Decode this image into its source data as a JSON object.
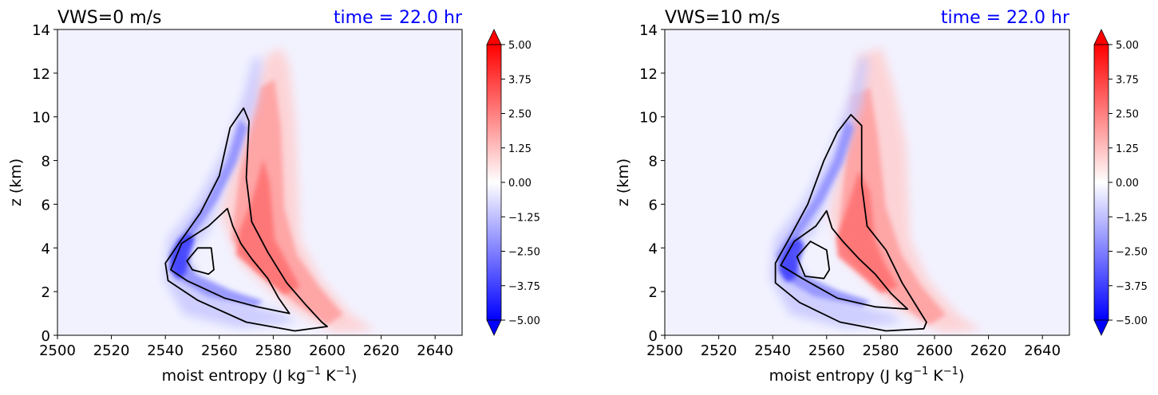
{
  "chart_data": [
    {
      "type": "heatmap",
      "title_left": "VWS=0 m/s",
      "title_right": "time = 22.0 hr",
      "title_right_color": "#0000ff",
      "xlabel": "moist entropy (J kg$^{-1}$ K$^{-1}$)",
      "xlabel_parts": {
        "base": "moist entropy (J kg",
        "exp1": "−1",
        "mid": " K",
        "exp2": "−1",
        "end": ")"
      },
      "ylabel": "z (km)",
      "xlim": [
        2500,
        2650
      ],
      "ylim": [
        0,
        14
      ],
      "xticks": [
        2500,
        2520,
        2540,
        2560,
        2580,
        2600,
        2620,
        2640
      ],
      "yticks": [
        0,
        2,
        4,
        6,
        8,
        10,
        12,
        14
      ],
      "colormap": "bwr",
      "colorbar_range": [
        -5.0,
        5.0
      ],
      "colorbar_extend": "both",
      "colorbar_ticks": [
        "5.00",
        "3.75",
        "2.50",
        "1.25",
        "0.00",
        "−1.25",
        "−2.50",
        "−3.75",
        "−5.00"
      ],
      "features": {
        "negative_core": {
          "x": 2545,
          "z": 3.5
        },
        "positive_core": {
          "x": 2570,
          "z": 3.5
        }
      },
      "contours": [
        [
          [
            2548,
            3.4
          ],
          [
            2552,
            4.0
          ],
          [
            2557,
            4.0
          ],
          [
            2558,
            3.0
          ],
          [
            2556,
            2.8
          ],
          [
            2550,
            3.0
          ],
          [
            2548,
            3.4
          ]
        ],
        [
          [
            2542,
            3.0
          ],
          [
            2546,
            4.2
          ],
          [
            2556,
            5.0
          ],
          [
            2563,
            5.8
          ],
          [
            2565,
            5.0
          ],
          [
            2568,
            4.2
          ],
          [
            2572,
            3.5
          ],
          [
            2578,
            2.6
          ],
          [
            2582,
            1.7
          ],
          [
            2586,
            1.0
          ],
          [
            2574,
            1.3
          ],
          [
            2562,
            1.7
          ],
          [
            2548,
            2.5
          ],
          [
            2542,
            3.0
          ]
        ],
        [
          [
            2540,
            3.3
          ],
          [
            2545,
            4.2
          ],
          [
            2553,
            5.6
          ],
          [
            2560,
            7.3
          ],
          [
            2564,
            9.5
          ],
          [
            2569,
            10.4
          ],
          [
            2571,
            9.8
          ],
          [
            2570,
            7.2
          ],
          [
            2572,
            5.2
          ],
          [
            2578,
            3.8
          ],
          [
            2585,
            2.4
          ],
          [
            2592,
            1.4
          ],
          [
            2598,
            0.6
          ],
          [
            2600,
            0.4
          ],
          [
            2588,
            0.2
          ],
          [
            2570,
            0.6
          ],
          [
            2552,
            1.6
          ],
          [
            2541,
            2.5
          ],
          [
            2540,
            3.3
          ]
        ]
      ]
    },
    {
      "type": "heatmap",
      "title_left": "VWS=10 m/s",
      "title_right": "time = 22.0 hr",
      "title_right_color": "#0000ff",
      "xlabel": "moist entropy (J kg$^{-1}$ K$^{-1}$)",
      "xlabel_parts": {
        "base": "moist entropy (J kg",
        "exp1": "−1",
        "mid": " K",
        "exp2": "−1",
        "end": ")"
      },
      "ylabel": "z (km)",
      "xlim": [
        2500,
        2650
      ],
      "ylim": [
        0,
        14
      ],
      "xticks": [
        2500,
        2520,
        2540,
        2560,
        2580,
        2600,
        2620,
        2640
      ],
      "yticks": [
        0,
        2,
        4,
        6,
        8,
        10,
        12,
        14
      ],
      "colormap": "bwr",
      "colorbar_range": [
        -5.0,
        5.0
      ],
      "colorbar_extend": "both",
      "colorbar_ticks": [
        "5.00",
        "3.75",
        "2.50",
        "1.25",
        "0.00",
        "−1.25",
        "−2.50",
        "−3.75",
        "−5.00"
      ],
      "features": {
        "negative_core": {
          "x": 2546,
          "z": 3.3
        },
        "positive_core": {
          "x": 2568,
          "z": 3.8
        }
      },
      "contours": [
        [
          [
            2549,
            3.6
          ],
          [
            2554,
            4.3
          ],
          [
            2560,
            3.9
          ],
          [
            2561,
            3.0
          ],
          [
            2559,
            2.6
          ],
          [
            2552,
            2.7
          ],
          [
            2549,
            3.6
          ]
        ],
        [
          [
            2543,
            3.2
          ],
          [
            2548,
            4.3
          ],
          [
            2556,
            5.0
          ],
          [
            2560,
            5.7
          ],
          [
            2562,
            4.9
          ],
          [
            2566,
            4.3
          ],
          [
            2572,
            3.5
          ],
          [
            2578,
            2.8
          ],
          [
            2584,
            1.9
          ],
          [
            2590,
            1.2
          ],
          [
            2578,
            1.3
          ],
          [
            2564,
            1.7
          ],
          [
            2551,
            2.6
          ],
          [
            2543,
            3.2
          ]
        ],
        [
          [
            2541,
            3.3
          ],
          [
            2546,
            4.4
          ],
          [
            2553,
            6.0
          ],
          [
            2559,
            8.0
          ],
          [
            2564,
            9.3
          ],
          [
            2569,
            10.1
          ],
          [
            2573,
            9.6
          ],
          [
            2573,
            6.9
          ],
          [
            2575,
            5.0
          ],
          [
            2582,
            3.9
          ],
          [
            2588,
            2.4
          ],
          [
            2594,
            1.2
          ],
          [
            2597,
            0.6
          ],
          [
            2596,
            0.3
          ],
          [
            2582,
            0.2
          ],
          [
            2565,
            0.6
          ],
          [
            2550,
            1.5
          ],
          [
            2541,
            2.4
          ],
          [
            2541,
            3.3
          ]
        ]
      ]
    }
  ]
}
